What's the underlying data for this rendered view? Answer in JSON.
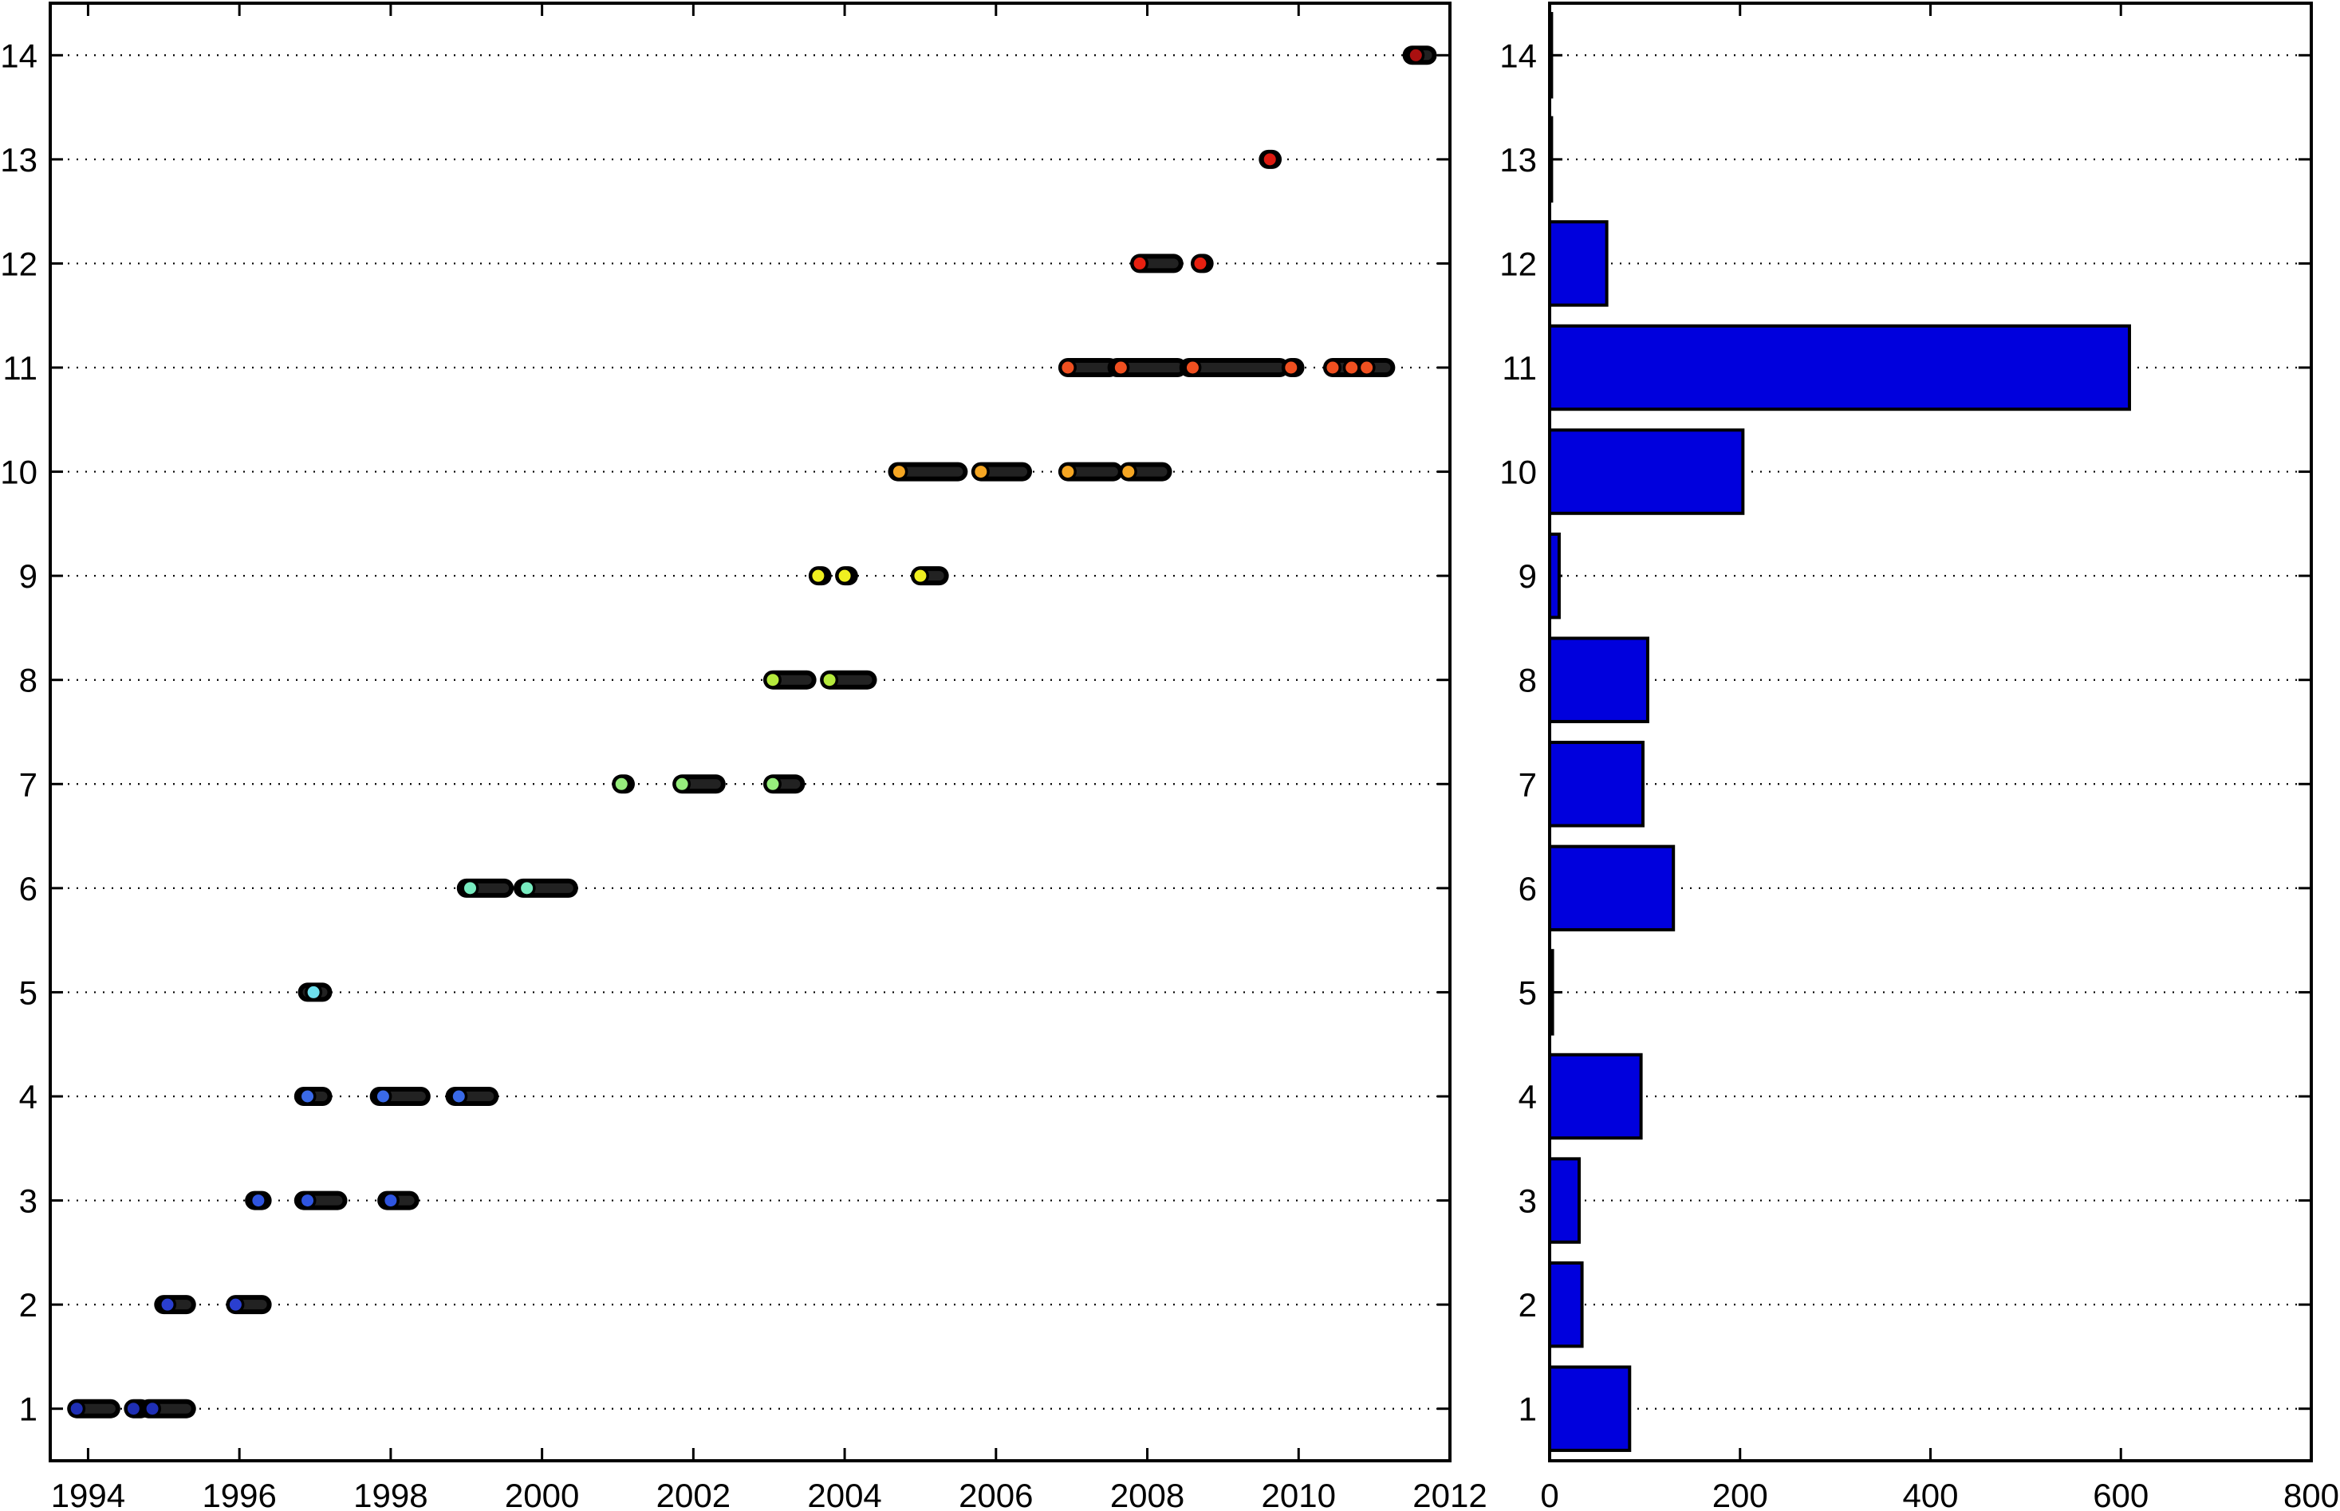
{
  "chart_data": [
    {
      "type": "scatter",
      "title": "",
      "xlabel": "",
      "ylabel": "",
      "xlim": [
        1993.5,
        2012
      ],
      "ylim": [
        0.5,
        14.5
      ],
      "x_ticks": [
        1994,
        1996,
        1998,
        2000,
        2002,
        2004,
        2006,
        2008,
        2010,
        2012
      ],
      "y_ticks": [
        1,
        2,
        3,
        4,
        5,
        6,
        7,
        8,
        9,
        10,
        11,
        12,
        13,
        14
      ],
      "grid": "horizontal dotted",
      "series": [
        {
          "y": 1,
          "color": "#1f2fb5",
          "segments": [
            [
              1993.85,
              1994.3
            ],
            [
              1994.6,
              1994.7
            ],
            [
              1994.8,
              1995.3
            ]
          ],
          "markers": [
            1993.85,
            1994.6,
            1994.85
          ]
        },
        {
          "y": 2,
          "color": "#2a3fd0",
          "segments": [
            [
              1995.0,
              1995.3
            ],
            [
              1995.95,
              1996.3
            ]
          ],
          "markers": [
            1995.05,
            1995.95
          ]
        },
        {
          "y": 3,
          "color": "#2f55e0",
          "segments": [
            [
              1996.2,
              1996.3
            ],
            [
              1996.85,
              1997.3
            ],
            [
              1997.95,
              1998.25
            ]
          ],
          "markers": [
            1996.25,
            1996.9,
            1998.0
          ]
        },
        {
          "y": 4,
          "color": "#3a6ae8",
          "segments": [
            [
              1996.85,
              1997.1
            ],
            [
              1997.85,
              1998.4
            ],
            [
              1998.85,
              1999.3
            ]
          ],
          "markers": [
            1996.9,
            1997.9,
            1998.9
          ]
        },
        {
          "y": 5,
          "color": "#6ee0ee",
          "segments": [
            [
              1996.9,
              1997.1
            ]
          ],
          "markers": [
            1996.98
          ]
        },
        {
          "y": 6,
          "color": "#78ecc0",
          "segments": [
            [
              1999.0,
              1999.5
            ],
            [
              1999.75,
              2000.35
            ]
          ],
          "markers": [
            1999.05,
            1999.8
          ]
        },
        {
          "y": 7,
          "color": "#96ee7c",
          "segments": [
            [
              2001.05,
              2001.1
            ],
            [
              2001.85,
              2002.3
            ],
            [
              2003.05,
              2003.35
            ]
          ],
          "markers": [
            2001.05,
            2001.85,
            2003.05
          ]
        },
        {
          "y": 8,
          "color": "#b5ea3c",
          "segments": [
            [
              2003.05,
              2003.5
            ],
            [
              2003.8,
              2004.3
            ]
          ],
          "markers": [
            2003.05,
            2003.8
          ]
        },
        {
          "y": 9,
          "color": "#f0f020",
          "segments": [
            [
              2003.65,
              2003.7
            ],
            [
              2004.0,
              2004.05
            ],
            [
              2005.0,
              2005.25
            ]
          ],
          "markers": [
            2003.65,
            2004.0,
            2005.0
          ]
        },
        {
          "y": 10,
          "color": "#f5a623",
          "segments": [
            [
              2004.7,
              2005.5
            ],
            [
              2005.8,
              2006.35
            ],
            [
              2006.95,
              2007.55
            ],
            [
              2007.75,
              2008.2
            ]
          ],
          "markers": [
            2004.72,
            2005.8,
            2006.95,
            2007.75
          ]
        },
        {
          "y": 11,
          "color": "#f05020",
          "segments": [
            [
              2006.95,
              2007.5
            ],
            [
              2007.6,
              2008.4
            ],
            [
              2008.55,
              2009.75
            ],
            [
              2009.9,
              2009.95
            ],
            [
              2010.45,
              2011.15
            ]
          ],
          "markers": [
            2006.95,
            2007.65,
            2008.6,
            2009.9,
            2010.45,
            2010.7,
            2010.9
          ]
        },
        {
          "y": 12,
          "color": "#e82010",
          "segments": [
            [
              2007.9,
              2008.35
            ],
            [
              2008.7,
              2008.75
            ]
          ],
          "markers": [
            2007.9,
            2008.7
          ]
        },
        {
          "y": 13,
          "color": "#dd1a10",
          "segments": [
            [
              2009.6,
              2009.65
            ]
          ],
          "markers": [
            2009.62
          ]
        },
        {
          "y": 14,
          "color": "#aa1010",
          "segments": [
            [
              2011.5,
              2011.7
            ]
          ],
          "markers": [
            2011.55
          ]
        }
      ]
    },
    {
      "type": "bar",
      "orientation": "horizontal",
      "title": "",
      "xlabel": "",
      "ylabel": "",
      "xlim": [
        0,
        800
      ],
      "ylim": [
        0.5,
        14.5
      ],
      "x_ticks": [
        0,
        200,
        400,
        600,
        800
      ],
      "y_ticks": [
        1,
        2,
        3,
        4,
        5,
        6,
        7,
        8,
        9,
        10,
        11,
        12,
        13,
        14
      ],
      "categories": [
        1,
        2,
        3,
        4,
        5,
        6,
        7,
        8,
        9,
        10,
        11,
        12,
        13,
        14
      ],
      "values": [
        84,
        34,
        31,
        96,
        3,
        130,
        98,
        103,
        10,
        203,
        609,
        60,
        2,
        2
      ],
      "bar_color": "#0000dd",
      "grid": "horizontal dotted"
    }
  ]
}
